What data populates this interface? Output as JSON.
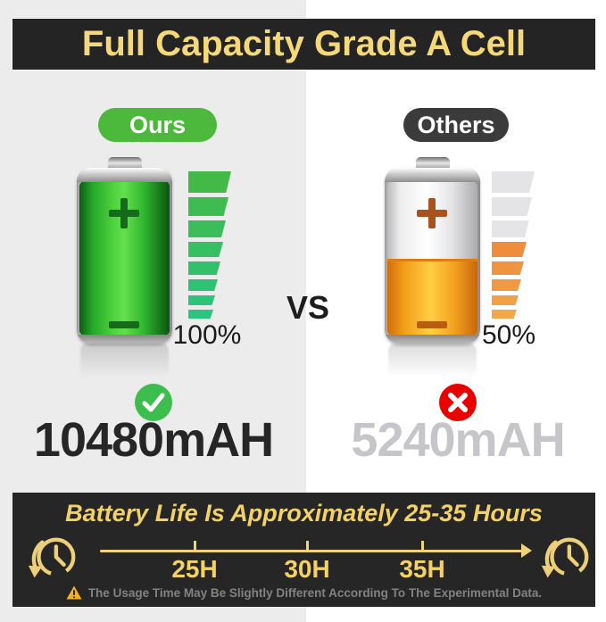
{
  "header": {
    "title": "Full Capacity Grade A Cell"
  },
  "versus_label": "VS",
  "ours": {
    "badge_label": "Ours",
    "percent_label": "100%",
    "capacity_label": "10480mAH",
    "bar_colors": [
      "#43ba47",
      "#3fbc51",
      "#3bbd5a",
      "#37bf63",
      "#33c06c",
      "#30c274",
      "#2ec37a",
      "#2cc480"
    ]
  },
  "others": {
    "badge_label": "Others",
    "percent_label": "50%",
    "capacity_label": "5240mAH",
    "bar_colors": [
      "#e4e4e6",
      "#e4e4e6",
      "#e5e5e7",
      "#ee8e3c",
      "#ef9440",
      "#f09a44",
      "#f1a147",
      "#f2a74b"
    ]
  },
  "footer": {
    "title": "Battery Life Is Approximately 25-35 Hours",
    "tick_labels": [
      "25H",
      "30H",
      "35H"
    ],
    "warning_text": "The Usage Time May Be Slightly Different According To The Experimental Data."
  },
  "colors": {
    "accent_gold": "#f3d169",
    "banner_black": "#242424",
    "ours_green": "#4cb83c",
    "others_gray": "#3b3b3b",
    "check_green": "#3dbd4e",
    "cross_red": "#e90202",
    "bg_left": "#ececec",
    "bg_right": "#ffffff"
  }
}
